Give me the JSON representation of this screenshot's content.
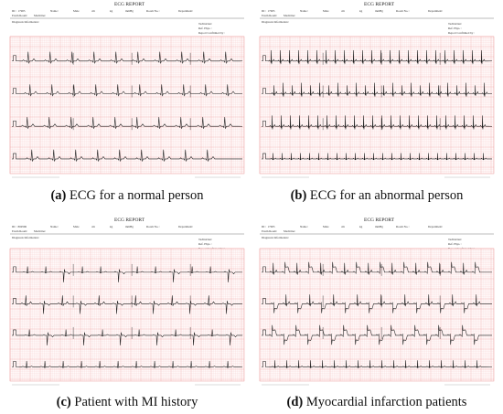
{
  "report_header": {
    "title": "ECG  REPORT",
    "id_label": "ID：",
    "name_label": "Name：",
    "male_label": "Male",
    "cm_label": "cm",
    "kg_label": "kg",
    "mmhg_label": "mmHg",
    "room_label": "Room No.：",
    "dept_label": "Department：",
    "exam_label": "Exam Room：",
    "medicine_label": "Medicine：",
    "diagnosis_label": "Diagnosis Information：",
    "technician_label": "Technician：",
    "ref_label": "Ref. Phys.：",
    "confirmed_label": "Report Confirmed by："
  },
  "panels": [
    {
      "letter": "(a)",
      "caption": "ECG for a normal person",
      "patient_id": "17905",
      "type": "normal"
    },
    {
      "letter": "(b)",
      "caption": "ECG for an abnormal person",
      "patient_id": "17905",
      "type": "abnormal"
    },
    {
      "letter": "(c)",
      "caption": "Patient with MI history",
      "patient_id": "869596",
      "type": "mi_history"
    },
    {
      "letter": "(d)",
      "caption": "Myocardial infarction patients",
      "patient_id": "17905",
      "type": "mi"
    }
  ],
  "colors": {
    "grid_minor": "#f6caca",
    "grid_major": "#ee9b9b",
    "trace": "#1a1a1a"
  }
}
